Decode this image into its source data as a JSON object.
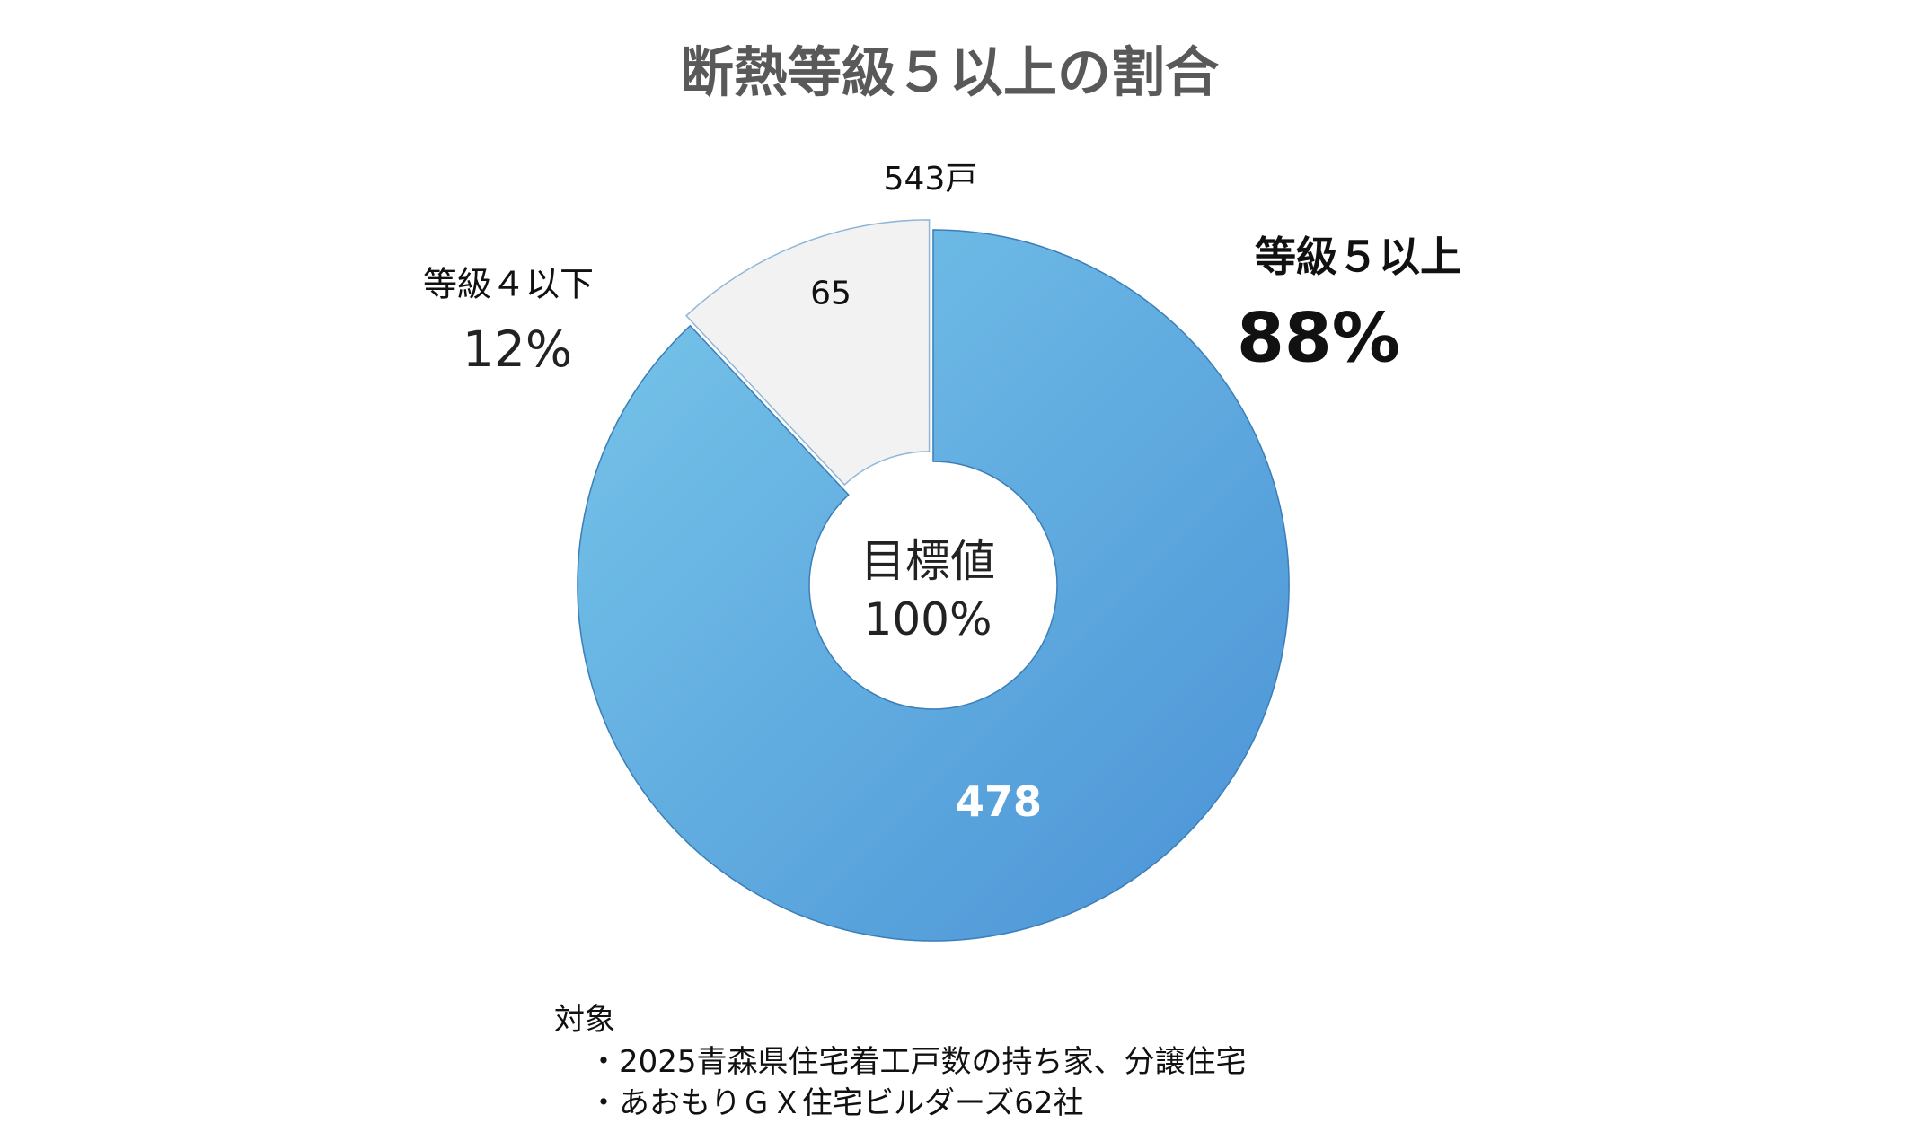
{
  "chart_data": {
    "type": "pie",
    "variant": "donut",
    "title": "断熱等級５以上の割合",
    "total_label": "543戸",
    "center_label": [
      "目標値",
      "100%"
    ],
    "slices": [
      {
        "name": "等級５以上",
        "value": 478,
        "value_label": "478",
        "percent_label": "88%",
        "color": "#5aa8e0"
      },
      {
        "name": "等級４以下",
        "value": 65,
        "value_label": "65",
        "percent_label": "12%",
        "color": "#f2f2f2",
        "exploded": true
      }
    ],
    "notes": [
      "対象",
      "・2025青森県住宅着工戸数の持ち家、分譲住宅",
      "・あおもりＧＸ住宅ビルダーズ62社"
    ]
  }
}
